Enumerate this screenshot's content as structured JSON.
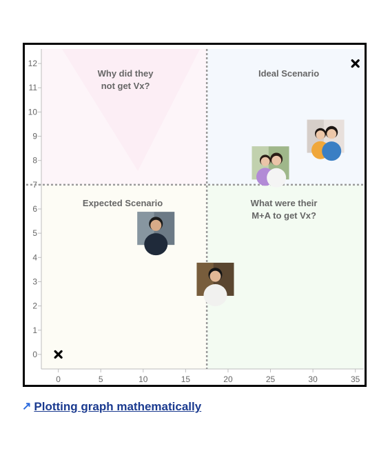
{
  "chart_data": {
    "type": "scatter",
    "title": "",
    "xlabel": "",
    "ylabel": "",
    "xlim": [
      -2,
      36
    ],
    "ylim": [
      -0.6,
      12.6
    ],
    "xticks": [
      0,
      5,
      10,
      15,
      20,
      25,
      30,
      35
    ],
    "yticks": [
      0,
      1,
      2,
      3,
      4,
      5,
      6,
      7,
      8,
      9,
      10,
      11,
      12
    ],
    "grid": false,
    "divider_x": 17.5,
    "divider_y": 7,
    "quadrants": [
      {
        "id": "top-left",
        "lines": [
          "Why did they",
          "not get Vx?"
        ],
        "color": "#fdf5f9"
      },
      {
        "id": "top-right",
        "lines": [
          "Ideal Scenario"
        ],
        "color": "#f4f8fd"
      },
      {
        "id": "bottom-left",
        "lines": [
          "Expected Scenario"
        ],
        "color": "#fdfcf5"
      },
      {
        "id": "bottom-right",
        "lines": [
          "What were their",
          "M+A to get Vx?"
        ],
        "color": "#f3fbf2"
      }
    ],
    "markers": [
      {
        "type": "cross",
        "x": 0,
        "y": 0
      },
      {
        "type": "cross",
        "x": 35,
        "y": 12
      }
    ],
    "photos": [
      {
        "name": "photo-man-in-suit",
        "x": 11.5,
        "y": 5.2
      },
      {
        "name": "photo-woman-smiling",
        "x": 18.5,
        "y": 3.1
      },
      {
        "name": "photo-woman-with-child",
        "x": 25,
        "y": 7.9
      },
      {
        "name": "photo-two-women",
        "x": 31.5,
        "y": 9
      }
    ]
  },
  "link": {
    "icon": "north-east-arrow-icon",
    "text": "Plotting graph mathematically",
    "color": "#1a3a8f"
  }
}
